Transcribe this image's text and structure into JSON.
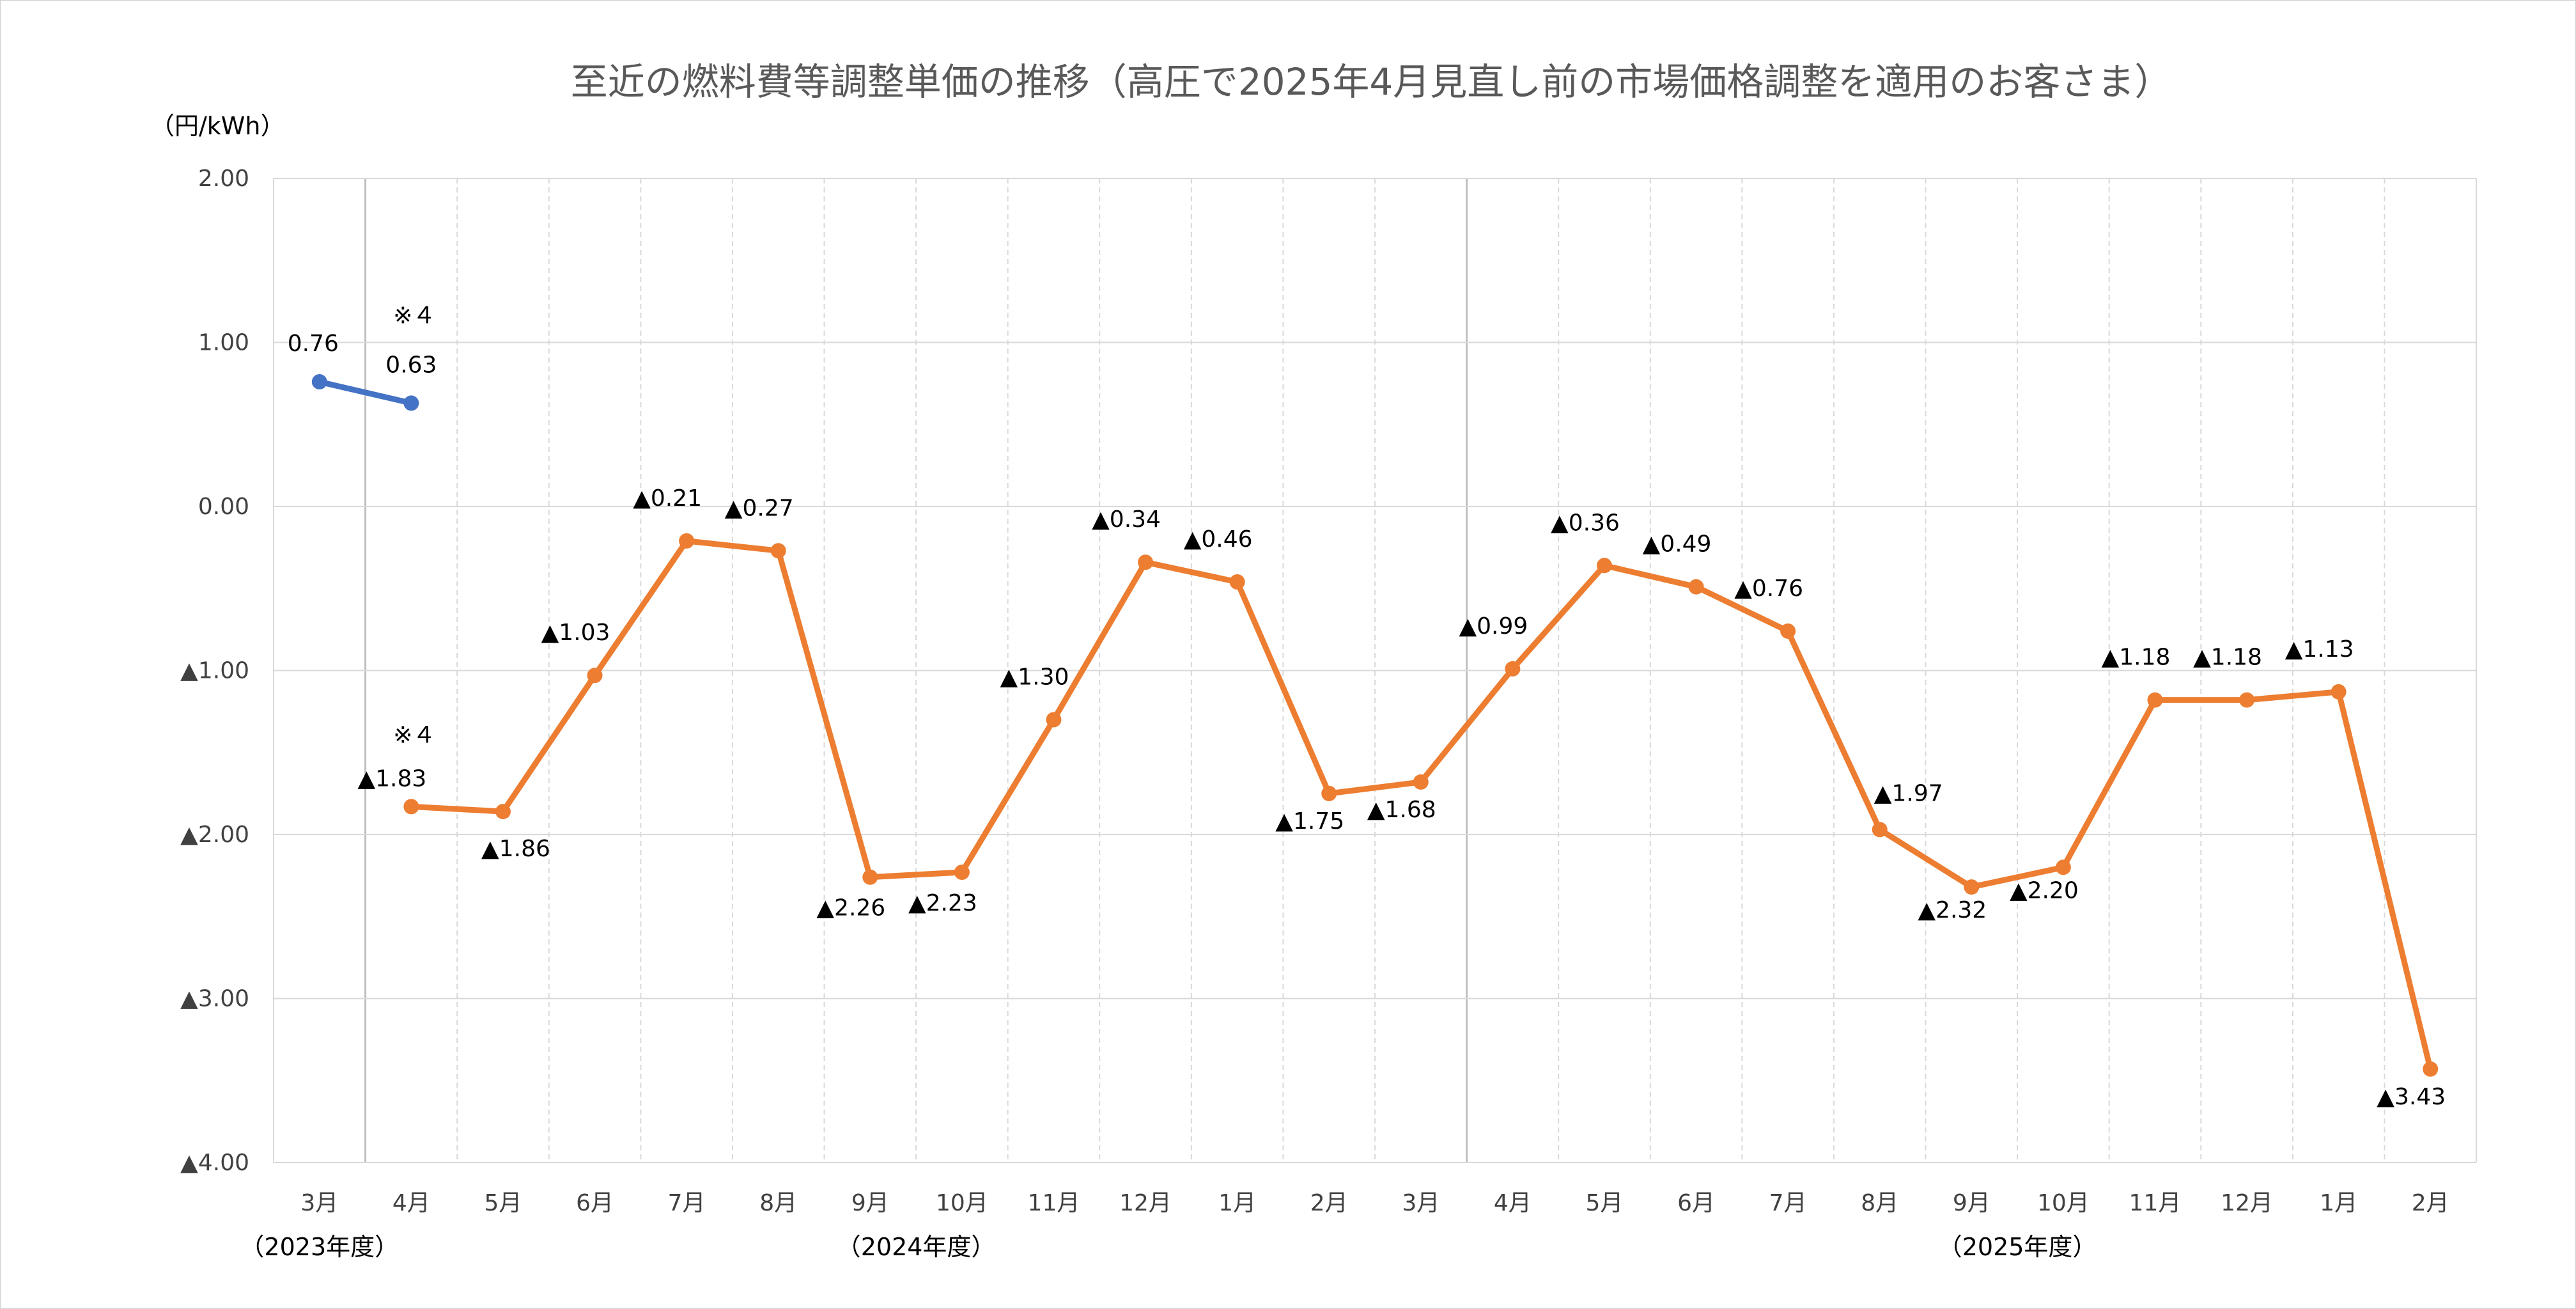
{
  "chart_data": {
    "type": "line",
    "title": "至近の燃料費等調整単価の推移（高圧で2025年4月見直し前の市場価格調整を適用のお客さま）",
    "ylabel": "（円/kWh）",
    "xlabel": "",
    "ylim": [
      -4.0,
      2.0
    ],
    "yticks": [
      {
        "value": 2.0,
        "label": "2.00"
      },
      {
        "value": 1.0,
        "label": "1.00"
      },
      {
        "value": 0.0,
        "label": "0.00"
      },
      {
        "value": -1.0,
        "label": "▲1.00"
      },
      {
        "value": -2.0,
        "label": "▲2.00"
      },
      {
        "value": -3.0,
        "label": "▲3.00"
      },
      {
        "value": -4.0,
        "label": "▲4.00"
      }
    ],
    "categories": [
      "3月",
      "4月",
      "5月",
      "6月",
      "7月",
      "8月",
      "9月",
      "10月",
      "11月",
      "12月",
      "1月",
      "2月",
      "3月",
      "4月",
      "5月",
      "6月",
      "7月",
      "8月",
      "9月",
      "10月",
      "11月",
      "12月",
      "1月",
      "2月"
    ],
    "fiscal_years": [
      {
        "label": "（2023年度）",
        "index": 0
      },
      {
        "label": "（2024年度）",
        "index": 6.5
      },
      {
        "label": "（2025年度）",
        "index": 18.5
      }
    ],
    "fiscal_dividers": [
      1,
      13
    ],
    "grid": true,
    "series": [
      {
        "color": "#4472C4",
        "points": [
          {
            "x": 0,
            "y": 0.76,
            "label": "0.76"
          },
          {
            "x": 1,
            "y": 0.63,
            "label": "0.63"
          }
        ]
      },
      {
        "color": "#ED7D31",
        "points": [
          {
            "x": 1,
            "y": -1.83,
            "label": "▲1.83"
          },
          {
            "x": 2,
            "y": -1.86,
            "label": "▲1.86"
          },
          {
            "x": 3,
            "y": -1.03,
            "label": "▲1.03"
          },
          {
            "x": 4,
            "y": -0.21,
            "label": "▲0.21"
          },
          {
            "x": 5,
            "y": -0.27,
            "label": "▲0.27"
          },
          {
            "x": 6,
            "y": -2.26,
            "label": "▲2.26"
          },
          {
            "x": 7,
            "y": -2.23,
            "label": "▲2.23"
          },
          {
            "x": 8,
            "y": -1.3,
            "label": "▲1.30"
          },
          {
            "x": 9,
            "y": -0.34,
            "label": "▲0.34"
          },
          {
            "x": 10,
            "y": -0.46,
            "label": "▲0.46"
          },
          {
            "x": 11,
            "y": -1.75,
            "label": "▲1.75"
          },
          {
            "x": 12,
            "y": -1.68,
            "label": "▲1.68"
          },
          {
            "x": 13,
            "y": -0.99,
            "label": "▲0.99"
          },
          {
            "x": 14,
            "y": -0.36,
            "label": "▲0.36"
          },
          {
            "x": 15,
            "y": -0.49,
            "label": "▲0.49"
          },
          {
            "x": 16,
            "y": -0.76,
            "label": "▲0.76"
          },
          {
            "x": 17,
            "y": -1.97,
            "label": "▲1.97"
          },
          {
            "x": 18,
            "y": -2.32,
            "label": "▲2.32"
          },
          {
            "x": 19,
            "y": -2.2,
            "label": "▲2.20"
          },
          {
            "x": 20,
            "y": -1.18,
            "label": "▲1.18"
          },
          {
            "x": 21,
            "y": -1.18,
            "label": "▲1.18"
          },
          {
            "x": 22,
            "y": -1.13,
            "label": "▲1.13"
          },
          {
            "x": 23,
            "y": -3.43,
            "label": "▲3.43"
          }
        ]
      }
    ],
    "annotations": [
      {
        "text": "※４",
        "x": 1,
        "series": 0
      },
      {
        "text": "※４",
        "x": 1,
        "series": 1
      }
    ]
  }
}
